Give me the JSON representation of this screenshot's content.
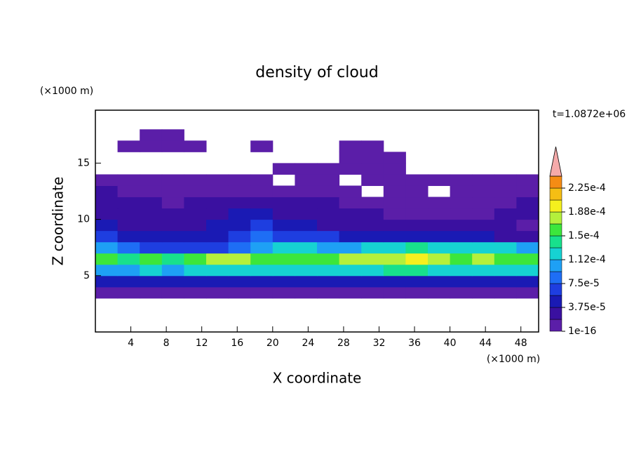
{
  "chart_data": {
    "type": "contour",
    "title": "density of cloud",
    "xlabel": "X coordinate",
    "ylabel": "Z coordinate",
    "xunit": "(×1000 m)",
    "yunit": "(×1000 m)",
    "annotation": "t=1.0872e+06",
    "xlim": [
      0,
      50
    ],
    "ylim": [
      0,
      19.7
    ],
    "xticks": [
      4,
      8,
      12,
      16,
      20,
      24,
      28,
      32,
      36,
      40,
      44,
      48
    ],
    "yticks": [
      5,
      10,
      15
    ],
    "x": [
      1.25,
      3.75,
      6.25,
      8.75,
      11.25,
      13.75,
      16.25,
      18.75,
      21.25,
      23.75,
      26.25,
      28.75,
      31.25,
      33.75,
      36.25,
      38.75,
      41.25,
      43.75,
      46.25,
      48.75
    ],
    "z": [
      3.5,
      4.5,
      5.5,
      6.5,
      7.5,
      8.5,
      9.5,
      10.5,
      11.5,
      12.5,
      13.5,
      14.5,
      15.5,
      16.5,
      17.5
    ],
    "values": [
      [
        1.5e-05,
        1.5e-05,
        1.5e-05,
        1.5e-05,
        1.5e-05,
        1.5e-05,
        1.5e-05,
        1.5e-05,
        1.5e-05,
        1.5e-05,
        1.5e-05,
        1.5e-05,
        1.5e-05,
        1.5e-05,
        1.5e-05,
        1.5e-05,
        1.5e-05,
        1.5e-05,
        1.5e-05,
        1.5e-05
      ],
      [
        5.5e-05,
        4.5e-05,
        5.5e-05,
        5.5e-05,
        4.5e-05,
        5.5e-05,
        5.5e-05,
        5.5e-05,
        5.5e-05,
        4.5e-05,
        5.5e-05,
        5.5e-05,
        5.5e-05,
        5.5e-05,
        5.5e-05,
        4.5e-05,
        5.5e-05,
        5.5e-05,
        5.5e-05,
        5.5e-05
      ],
      [
        0.0001,
        0.00011,
        0.00012,
        0.00011,
        0.00012,
        0.00013,
        0.00012,
        0.00012,
        0.00013,
        0.00012,
        0.00012,
        0.00013,
        0.00013,
        0.00014,
        0.00014,
        0.00013,
        0.00013,
        0.00012,
        0.00012,
        0.00012
      ],
      [
        0.00015,
        0.00014,
        0.00015,
        0.00014,
        0.00015,
        0.00017,
        0.00017,
        0.00015,
        0.00016,
        0.00015,
        0.00015,
        0.00017,
        0.00018,
        0.00018,
        0.0002,
        0.00018,
        0.00016,
        0.00017,
        0.00016,
        0.00016
      ],
      [
        0.0001,
        8e-05,
        6e-05,
        6e-05,
        6e-05,
        7e-05,
        8e-05,
        0.00011,
        0.00013,
        0.00012,
        0.0001,
        0.00011,
        0.00013,
        0.00013,
        0.00014,
        0.00013,
        0.00013,
        0.00012,
        0.00012,
        0.0001
      ],
      [
        6e-05,
        4.5e-05,
        4e-05,
        4e-05,
        4e-05,
        5e-05,
        6e-05,
        8e-05,
        7e-05,
        7e-05,
        6e-05,
        5e-05,
        5e-05,
        4.5e-05,
        4.5e-05,
        4.5e-05,
        4e-05,
        4e-05,
        3e-05,
        2.5e-05
      ],
      [
        4e-05,
        3.5e-05,
        3e-05,
        3e-05,
        3.5e-05,
        4e-05,
        5e-05,
        6e-05,
        5e-05,
        4e-05,
        3.5e-05,
        3e-05,
        3e-05,
        2.5e-05,
        2.5e-05,
        2.5e-05,
        2.5e-05,
        2e-05,
        2e-05,
        1.5e-05
      ],
      [
        3e-05,
        2.5e-05,
        2e-05,
        2e-05,
        2.5e-05,
        3e-05,
        4e-05,
        4e-05,
        3.5e-05,
        3e-05,
        2.5e-05,
        2e-05,
        2e-05,
        1.5e-05,
        1.5e-05,
        1.5e-05,
        1.5e-05,
        1.5e-05,
        2e-05,
        2e-05
      ],
      [
        2.5e-05,
        2e-05,
        2e-05,
        1.5e-05,
        2e-05,
        2e-05,
        2.5e-05,
        2.5e-05,
        2.5e-05,
        2e-05,
        2e-05,
        1.5e-05,
        1e-05,
        5e-06,
        1e-05,
        5e-06,
        1e-05,
        1e-05,
        1.5e-05,
        2e-05
      ],
      [
        2e-05,
        1.5e-05,
        1e-05,
        1e-05,
        1e-05,
        1e-05,
        1e-05,
        1.5e-05,
        1.5e-05,
        1e-05,
        5e-06,
        5e-06,
        null,
        5e-06,
        5e-06,
        null,
        5e-06,
        5e-06,
        1e-05,
        1e-05
      ],
      [
        5e-06,
        5e-06,
        5e-06,
        5e-06,
        5e-06,
        5e-06,
        5e-06,
        5e-06,
        null,
        5e-06,
        5e-06,
        null,
        5e-06,
        5e-06,
        5e-06,
        5e-06,
        5e-06,
        5e-06,
        5e-06,
        5e-06
      ],
      [
        null,
        null,
        null,
        null,
        null,
        null,
        null,
        null,
        5e-06,
        5e-06,
        5e-06,
        5e-06,
        5e-06,
        5e-06,
        null,
        null,
        null,
        null,
        null,
        null
      ],
      [
        null,
        null,
        null,
        null,
        null,
        null,
        null,
        null,
        null,
        null,
        null,
        5e-06,
        5e-06,
        5e-06,
        null,
        null,
        null,
        null,
        null,
        null
      ],
      [
        null,
        5e-06,
        5e-06,
        5e-06,
        5e-06,
        null,
        null,
        5e-06,
        null,
        null,
        null,
        5e-06,
        5e-06,
        null,
        null,
        null,
        null,
        null,
        null,
        null
      ],
      [
        null,
        null,
        5e-06,
        5e-06,
        null,
        null,
        null,
        null,
        null,
        null,
        null,
        null,
        null,
        null,
        null,
        null,
        null,
        null,
        null,
        null
      ]
    ],
    "colorbar": {
      "levels": [
        1e-16,
        1.875e-05,
        3.75e-05,
        5.625e-05,
        7.5e-05,
        9.375e-05,
        0.0001125,
        0.00013125,
        0.00015,
        0.00016875,
        0.0001875,
        0.00020625,
        0.000225,
        0.00024375
      ],
      "colors": [
        "#5b1ea8",
        "#3a10a0",
        "#1a1ab4",
        "#1e3ee0",
        "#1e6ef5",
        "#1ea0f5",
        "#16d2d2",
        "#18e08c",
        "#3ce63c",
        "#b4f03c",
        "#f5f01e",
        "#f5be14",
        "#f58c14"
      ],
      "over_color": "#f5aaaa",
      "ticks": [
        {
          "value": 1e-16,
          "label": "1e-16"
        },
        {
          "value": 3.75e-05,
          "label": "3.75e-5"
        },
        {
          "value": 7.5e-05,
          "label": "7.5e-5"
        },
        {
          "value": 0.0001125,
          "label": "1.12e-4"
        },
        {
          "value": 0.00015,
          "label": "1.5e-4"
        },
        {
          "value": 0.0001875,
          "label": "1.88e-4"
        },
        {
          "value": 0.000225,
          "label": "2.25e-4"
        }
      ]
    }
  }
}
